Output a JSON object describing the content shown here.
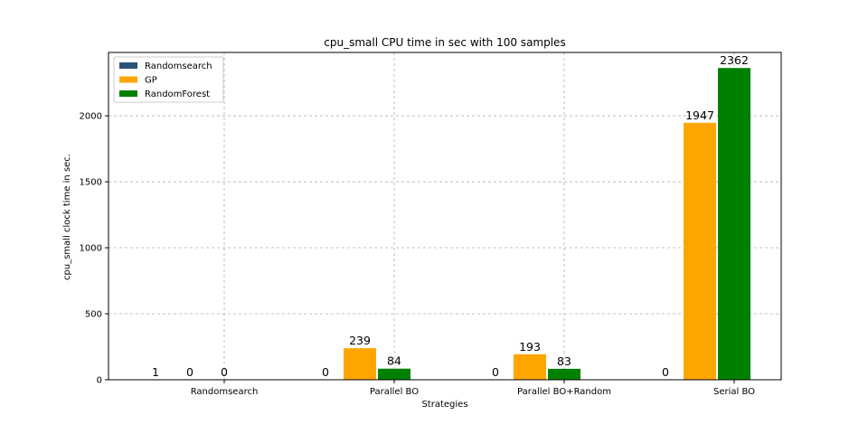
{
  "chart_data": {
    "type": "bar",
    "title": "cpu_small CPU time in sec with 100 samples",
    "xlabel": "Strategies",
    "ylabel": "cpu_small clock time in sec.",
    "categories": [
      "Randomsearch",
      "Parallel BO",
      "Parallel BO+Random",
      "Serial BO"
    ],
    "series": [
      {
        "name": "Randomsearch",
        "color": "#2c5278",
        "values": [
          1,
          0,
          0,
          0
        ]
      },
      {
        "name": "GP",
        "color": "#ffa500",
        "values": [
          0,
          239,
          193,
          1947
        ]
      },
      {
        "name": "RandomForest",
        "color": "#008000",
        "values": [
          0,
          84,
          83,
          2362
        ]
      }
    ],
    "data_labels": [
      [
        "1",
        "0",
        "0"
      ],
      [
        "0",
        "239",
        "84"
      ],
      [
        "0",
        "193",
        "83"
      ],
      [
        "0",
        "1947",
        "2362"
      ]
    ],
    "ylim": [
      0,
      2480
    ],
    "yticks": [
      0,
      500,
      1000,
      1500,
      2000
    ],
    "grid": true,
    "legend_position": "top-left"
  }
}
